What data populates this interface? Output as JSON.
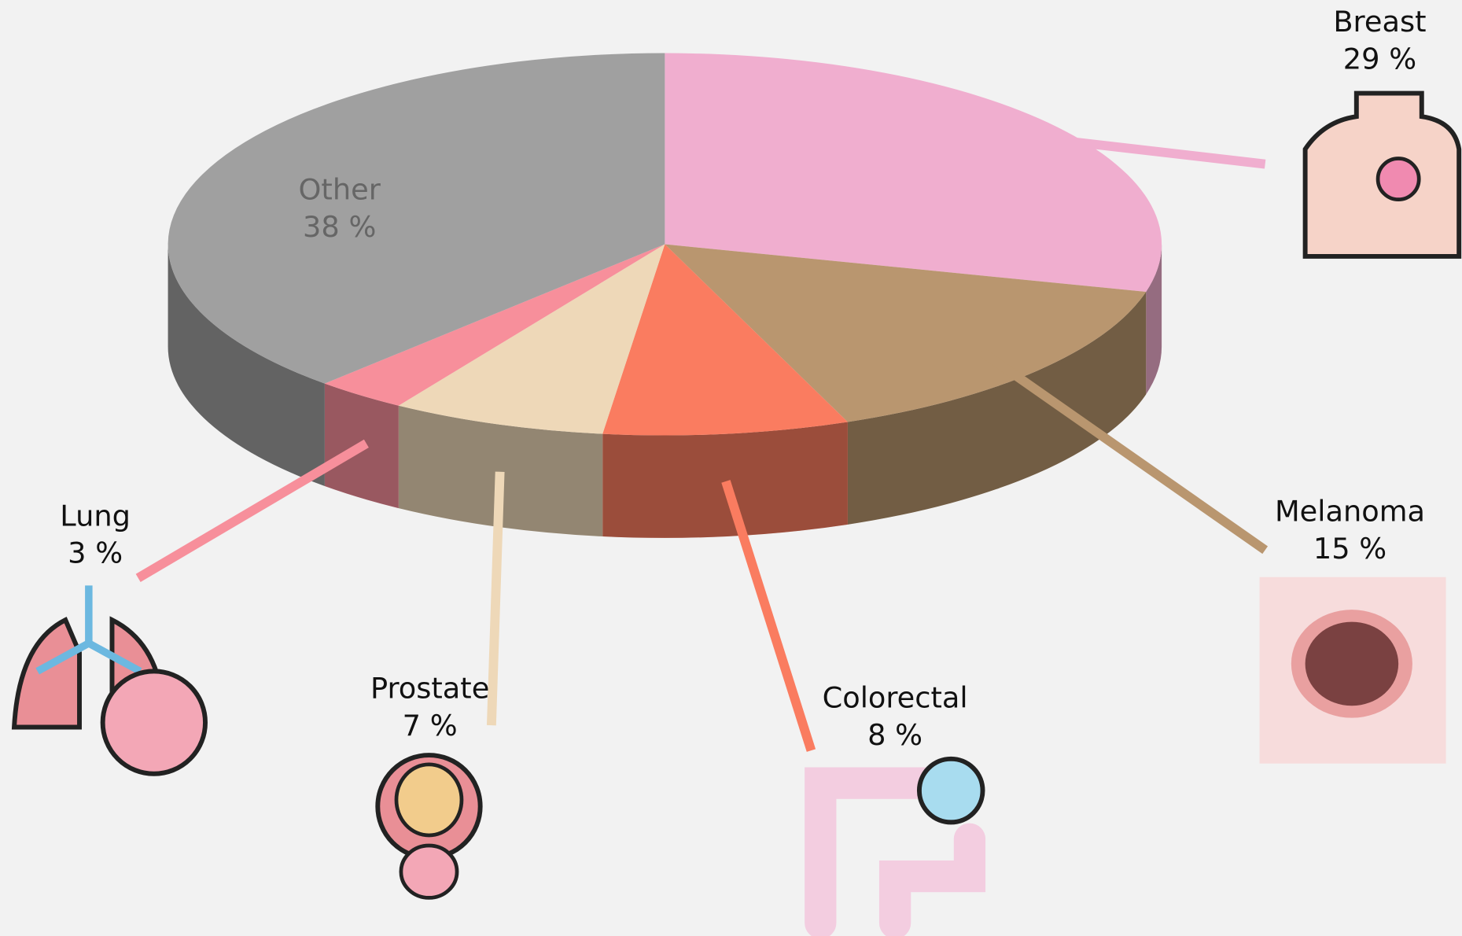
{
  "chart_data": {
    "type": "pie",
    "categories": [
      "Breast",
      "Melanoma",
      "Colorectal",
      "Prostate",
      "Lung",
      "Other"
    ],
    "values": [
      29,
      15,
      8,
      7,
      3,
      38
    ],
    "value_labels": [
      "29 %",
      "15 %",
      "8 %",
      "7 %",
      "3 %",
      "38 %"
    ],
    "colors": [
      "#f0aecf",
      "#b9966f",
      "#fa7c60",
      "#eed8b8",
      "#f78f9b",
      "#a0a0a0"
    ]
  }
}
